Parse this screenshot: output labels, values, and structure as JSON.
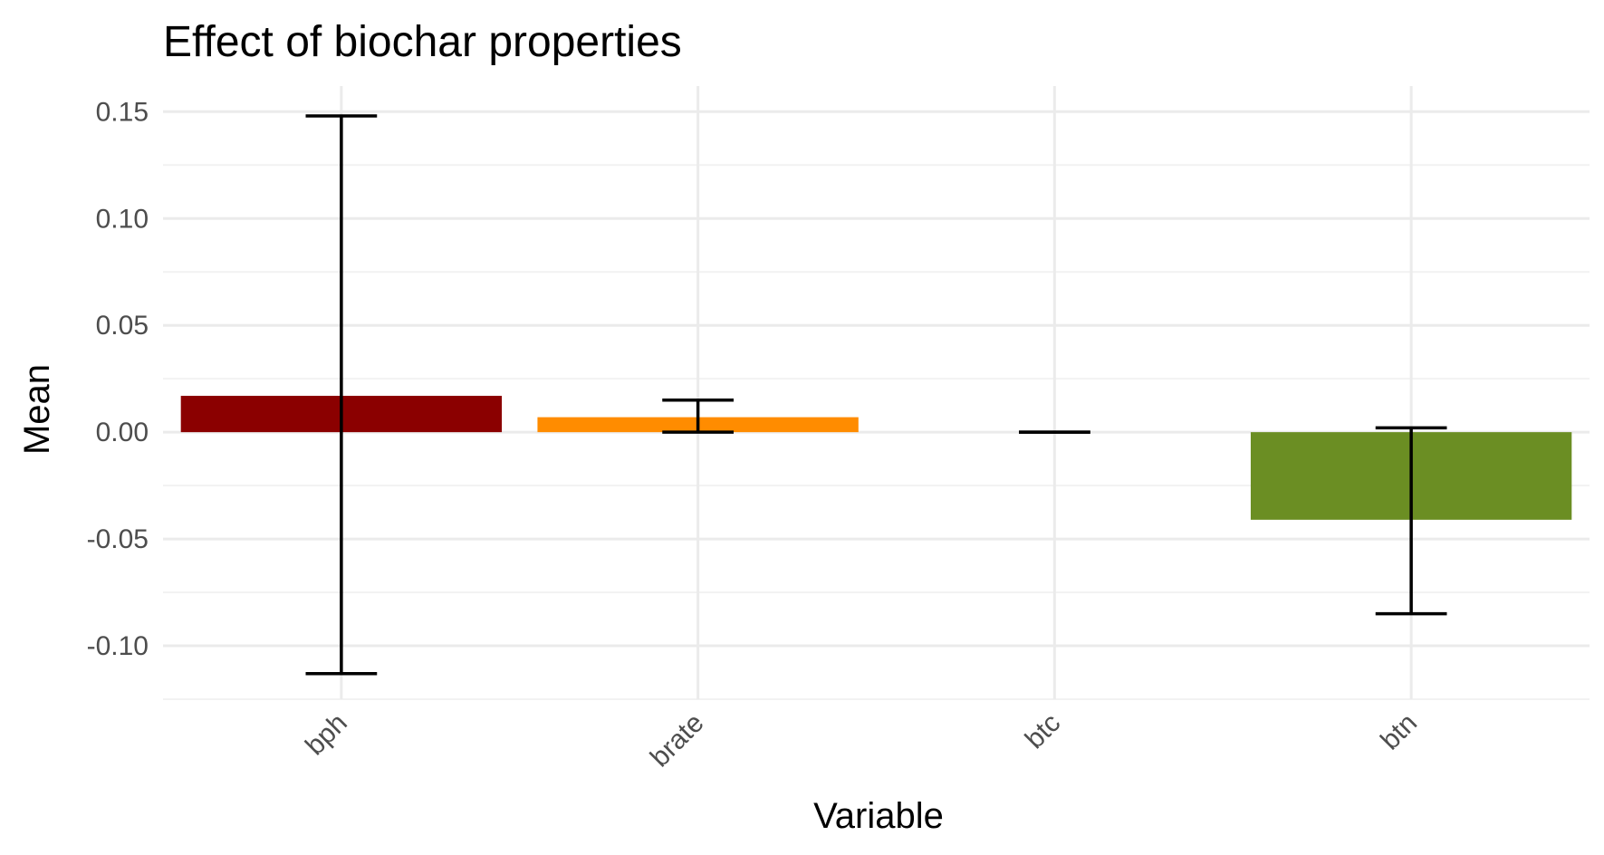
{
  "chart_data": {
    "type": "bar",
    "title": "Effect of biochar properties",
    "xlabel": "Variable",
    "ylabel": "Mean",
    "categories": [
      "bph",
      "brate",
      "btc",
      "btn"
    ],
    "values": [
      0.017,
      0.007,
      0.0,
      -0.041
    ],
    "error_low": [
      -0.113,
      0.0,
      0.0,
      -0.085
    ],
    "error_high": [
      0.148,
      0.015,
      0.0,
      0.002
    ],
    "colors": [
      "#8b0000",
      "#ff8c00",
      "#ffffff",
      "#6b8e23"
    ],
    "ylim": [
      -0.125,
      0.162
    ],
    "yticks": [
      -0.1,
      -0.05,
      0.0,
      0.05,
      0.1,
      0.15
    ],
    "ytick_labels": [
      "-0.10",
      "-0.05",
      "0.00",
      "0.05",
      "0.10",
      "0.15"
    ],
    "grid": true,
    "legend": "none"
  }
}
